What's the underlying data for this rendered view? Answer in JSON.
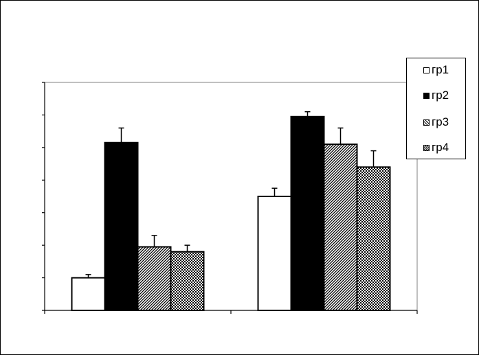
{
  "chart_data": {
    "type": "bar",
    "categories": [
      "",
      ""
    ],
    "series": [
      {
        "name": "гр1",
        "values": [
          1.0,
          3.5
        ],
        "errors": [
          0.1,
          0.25
        ],
        "pattern": "white"
      },
      {
        "name": "гр2",
        "values": [
          5.15,
          5.95
        ],
        "errors": [
          0.45,
          0.15
        ],
        "pattern": "black"
      },
      {
        "name": "гр3",
        "values": [
          1.95,
          5.1
        ],
        "errors": [
          0.35,
          0.5
        ],
        "pattern": "diagonal"
      },
      {
        "name": "гр4",
        "values": [
          1.8,
          4.4
        ],
        "errors": [
          0.2,
          0.5
        ],
        "pattern": "checker"
      }
    ],
    "ylim": [
      0,
      7
    ],
    "title": "",
    "xlabel": "",
    "ylabel": "",
    "grid": false,
    "legend_position": "top-right",
    "colors": {
      "black": "#000000",
      "white": "#ffffff",
      "plot_border": "#808080"
    }
  }
}
